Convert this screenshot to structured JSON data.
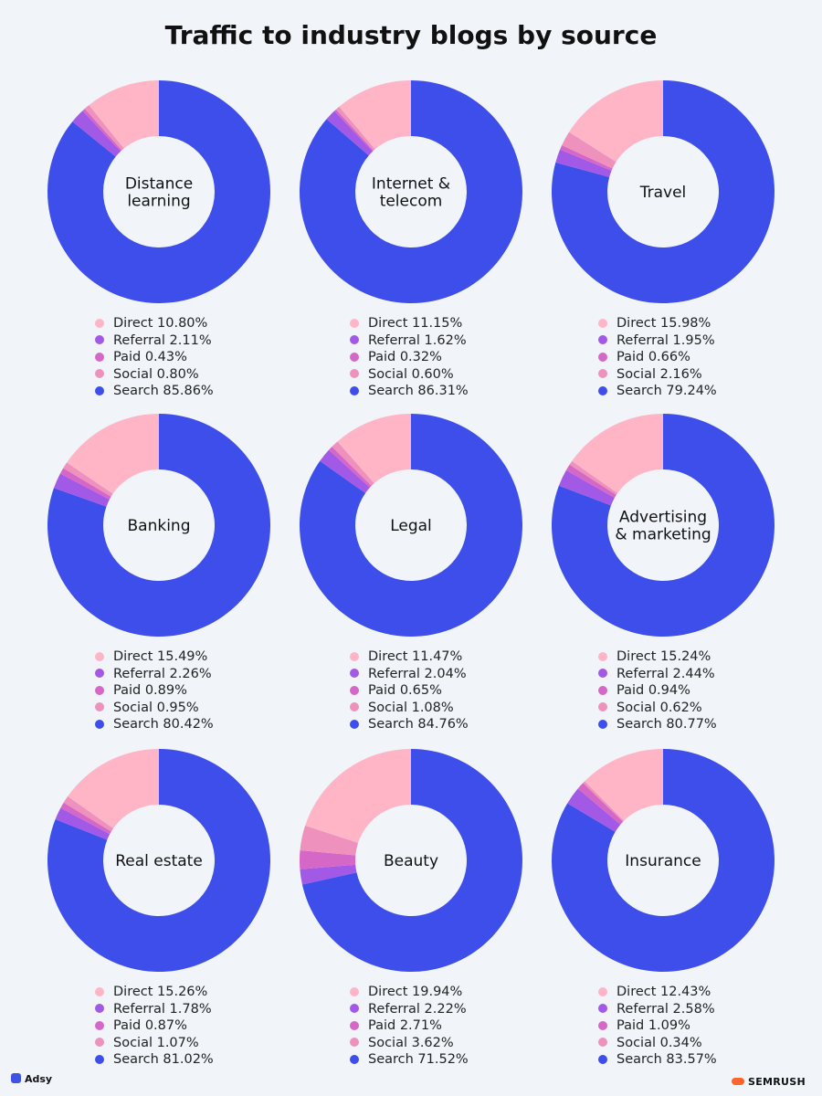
{
  "title": "Traffic to industry blogs by source",
  "colors": {
    "Direct": "#ffb5c5",
    "Referral": "#a259e6",
    "Paid": "#d567c7",
    "Social": "#ee92bd",
    "Search": "#3d4eea"
  },
  "chart_data": [
    {
      "type": "pie",
      "title": "Distance learning",
      "center_lines": [
        "Distance",
        "learning"
      ],
      "series": [
        {
          "name": "Direct",
          "value": 10.8,
          "label": "Direct 10.80%"
        },
        {
          "name": "Referral",
          "value": 2.11,
          "label": "Referral 2.11%"
        },
        {
          "name": "Paid",
          "value": 0.43,
          "label": "Paid 0.43%"
        },
        {
          "name": "Social",
          "value": 0.8,
          "label": "Social 0.80%"
        },
        {
          "name": "Search",
          "value": 85.86,
          "label": "Search 85.86%"
        }
      ]
    },
    {
      "type": "pie",
      "title": "Internet & telecom",
      "center_lines": [
        "Internet &",
        "telecom"
      ],
      "series": [
        {
          "name": "Direct",
          "value": 11.15,
          "label": "Direct 11.15%"
        },
        {
          "name": "Referral",
          "value": 1.62,
          "label": "Referral 1.62%"
        },
        {
          "name": "Paid",
          "value": 0.32,
          "label": "Paid 0.32%"
        },
        {
          "name": "Social",
          "value": 0.6,
          "label": "Social 0.60%"
        },
        {
          "name": "Search",
          "value": 86.31,
          "label": "Search 86.31%"
        }
      ]
    },
    {
      "type": "pie",
      "title": "Travel",
      "center_lines": [
        "Travel"
      ],
      "series": [
        {
          "name": "Direct",
          "value": 15.98,
          "label": "Direct 15.98%"
        },
        {
          "name": "Referral",
          "value": 1.95,
          "label": "Referral 1.95%"
        },
        {
          "name": "Paid",
          "value": 0.66,
          "label": "Paid 0.66%"
        },
        {
          "name": "Social",
          "value": 2.16,
          "label": "Social 2.16%"
        },
        {
          "name": "Search",
          "value": 79.24,
          "label": "Search 79.24%"
        }
      ]
    },
    {
      "type": "pie",
      "title": "Banking",
      "center_lines": [
        "Banking"
      ],
      "series": [
        {
          "name": "Direct",
          "value": 15.49,
          "label": "Direct 15.49%"
        },
        {
          "name": "Referral",
          "value": 2.26,
          "label": "Referral 2.26%"
        },
        {
          "name": "Paid",
          "value": 0.89,
          "label": "Paid 0.89%"
        },
        {
          "name": "Social",
          "value": 0.95,
          "label": "Social 0.95%"
        },
        {
          "name": "Search",
          "value": 80.42,
          "label": "Search 80.42%"
        }
      ]
    },
    {
      "type": "pie",
      "title": "Legal",
      "center_lines": [
        "Legal"
      ],
      "series": [
        {
          "name": "Direct",
          "value": 11.47,
          "label": "Direct 11.47%"
        },
        {
          "name": "Referral",
          "value": 2.04,
          "label": "Referral 2.04%"
        },
        {
          "name": "Paid",
          "value": 0.65,
          "label": "Paid 0.65%"
        },
        {
          "name": "Social",
          "value": 1.08,
          "label": "Social 1.08%"
        },
        {
          "name": "Search",
          "value": 84.76,
          "label": "Search 84.76%"
        }
      ]
    },
    {
      "type": "pie",
      "title": "Advertising & marketing",
      "center_lines": [
        "Advertising",
        "& marketing"
      ],
      "series": [
        {
          "name": "Direct",
          "value": 15.24,
          "label": "Direct 15.24%"
        },
        {
          "name": "Referral",
          "value": 2.44,
          "label": "Referral 2.44%"
        },
        {
          "name": "Paid",
          "value": 0.94,
          "label": "Paid 0.94%"
        },
        {
          "name": "Social",
          "value": 0.62,
          "label": "Social 0.62%"
        },
        {
          "name": "Search",
          "value": 80.77,
          "label": "Search 80.77%"
        }
      ]
    },
    {
      "type": "pie",
      "title": "Real estate",
      "center_lines": [
        "Real estate"
      ],
      "series": [
        {
          "name": "Direct",
          "value": 15.26,
          "label": "Direct 15.26%"
        },
        {
          "name": "Referral",
          "value": 1.78,
          "label": "Referral 1.78%"
        },
        {
          "name": "Paid",
          "value": 0.87,
          "label": "Paid 0.87%"
        },
        {
          "name": "Social",
          "value": 1.07,
          "label": "Social 1.07%"
        },
        {
          "name": "Search",
          "value": 81.02,
          "label": "Search 81.02%"
        }
      ]
    },
    {
      "type": "pie",
      "title": "Beauty",
      "center_lines": [
        "Beauty"
      ],
      "series": [
        {
          "name": "Direct",
          "value": 19.94,
          "label": "Direct 19.94%"
        },
        {
          "name": "Referral",
          "value": 2.22,
          "label": "Referral 2.22%"
        },
        {
          "name": "Paid",
          "value": 2.71,
          "label": "Paid 2.71%"
        },
        {
          "name": "Social",
          "value": 3.62,
          "label": "Social 3.62%"
        },
        {
          "name": "Search",
          "value": 71.52,
          "label": "Search 71.52%"
        }
      ]
    },
    {
      "type": "pie",
      "title": "Insurance",
      "center_lines": [
        "Insurance"
      ],
      "series": [
        {
          "name": "Direct",
          "value": 12.43,
          "label": "Direct 12.43%"
        },
        {
          "name": "Referral",
          "value": 2.58,
          "label": "Referral 2.58%"
        },
        {
          "name": "Paid",
          "value": 1.09,
          "label": "Paid 1.09%"
        },
        {
          "name": "Social",
          "value": 0.34,
          "label": "Social 0.34%"
        },
        {
          "name": "Search",
          "value": 83.57,
          "label": "Search 83.57%"
        }
      ]
    }
  ],
  "footer": {
    "left_brand": "Adsy",
    "right_brand": "SEMRUSH"
  }
}
